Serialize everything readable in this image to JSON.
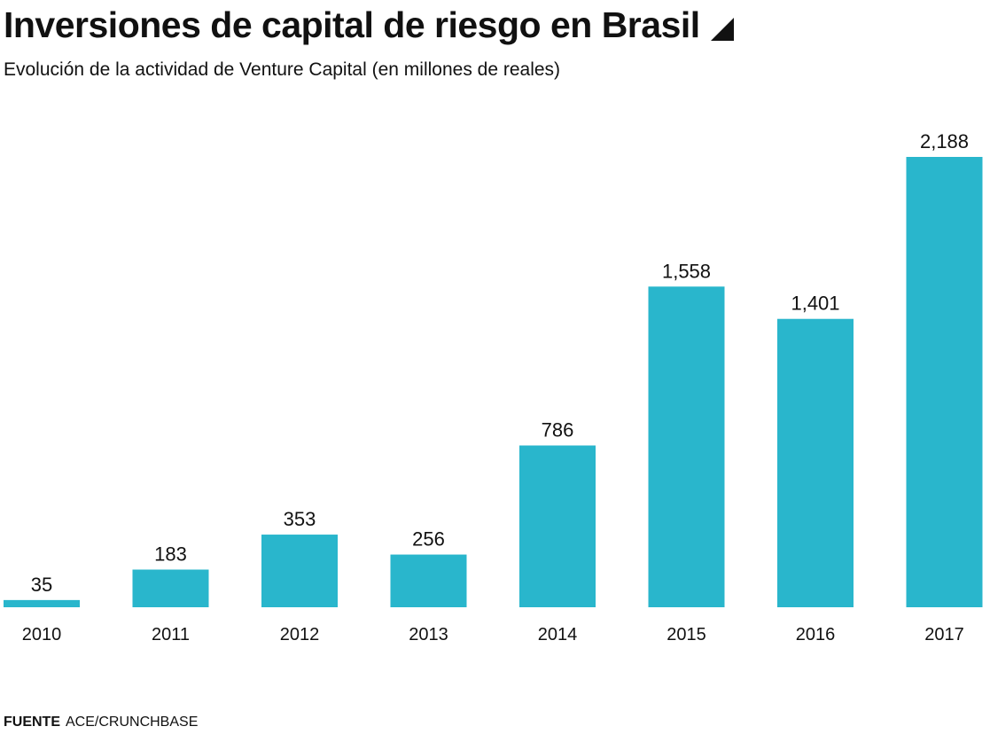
{
  "header": {
    "title": "Inversiones de capital de riesgo en Brasil",
    "subtitle": "Evolución de la actividad de Venture Capital (en millones de reales)"
  },
  "chart_data": {
    "type": "bar",
    "categories": [
      "2010",
      "2011",
      "2012",
      "2013",
      "2014",
      "2015",
      "2016",
      "2017"
    ],
    "values": [
      35,
      183,
      353,
      256,
      786,
      1558,
      1401,
      2188
    ],
    "data_labels": [
      "35",
      "183",
      "353",
      "256",
      "786",
      "1,558",
      "1,401",
      "2,188"
    ],
    "ylim": [
      0,
      2188
    ],
    "grid": false,
    "bar_color": "#29b6cc"
  },
  "footer": {
    "source_label": "FUENTE",
    "source_text": "ACE/CRUNCHBASE"
  }
}
